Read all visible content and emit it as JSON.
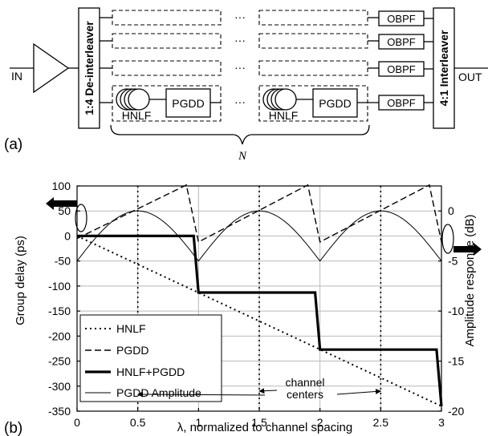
{
  "schematic": {
    "in_label": "IN",
    "out_label": "OUT",
    "deinterleaver_label": "1:4 De-interleaver",
    "interleaver_label": "4:1 Interleaver",
    "obpf_label": "OBPF",
    "hnlf_label": "HNLF",
    "pgdd_label": "PGDD",
    "ellipsis": "···",
    "n_label": "N",
    "panel_label": "(a)"
  },
  "chart_data": {
    "type": "line",
    "panel_label": "(b)",
    "xlabel": "λ, normalized to channel spacing",
    "ylabel_left": "Group delay (ps)",
    "ylabel_right": "Amplitude response (dB)",
    "xlim": [
      0,
      3
    ],
    "ylim_left": [
      -350,
      100
    ],
    "ylim_right": [
      -20,
      2.5
    ],
    "xticks": [
      "0",
      "0.5",
      "1",
      "1.5",
      "2",
      "2.5",
      "3"
    ],
    "yticks_left": [
      "100",
      "50",
      "0",
      "-50",
      "-100",
      "-150",
      "-200",
      "-250",
      "-300",
      "-350"
    ],
    "yticks_right": [
      "0",
      "-5",
      "-10",
      "-15",
      "-20"
    ],
    "grid": true,
    "legend_position": "bottom-left",
    "annotation": [
      "channel",
      "centers"
    ],
    "channel_centers": [
      0.5,
      1.5,
      2.5
    ],
    "series": [
      {
        "name": "HNLF",
        "axis": "left",
        "style": "dotted",
        "x": [
          0,
          3
        ],
        "y": [
          0,
          -340
        ]
      },
      {
        "name": "PGDD",
        "axis": "left",
        "style": "dashed",
        "x": [
          0,
          0.9,
          1,
          1.9,
          2,
          2.9,
          3
        ],
        "y": [
          -5,
          102,
          -12,
          102,
          -12,
          102,
          -12
        ]
      },
      {
        "name": "HNLF+PGDD",
        "axis": "left",
        "style": "thick",
        "x": [
          0,
          0.96,
          1.0,
          1.96,
          2.0,
          2.96,
          3.0
        ],
        "y": [
          0,
          0,
          -113,
          -113,
          -227,
          -227,
          -340
        ]
      },
      {
        "name": "PGDD Amplitude",
        "axis": "right",
        "style": "thin",
        "kind": "arches",
        "period": 1,
        "peak_db": 0,
        "trough_db": -5
      }
    ]
  }
}
